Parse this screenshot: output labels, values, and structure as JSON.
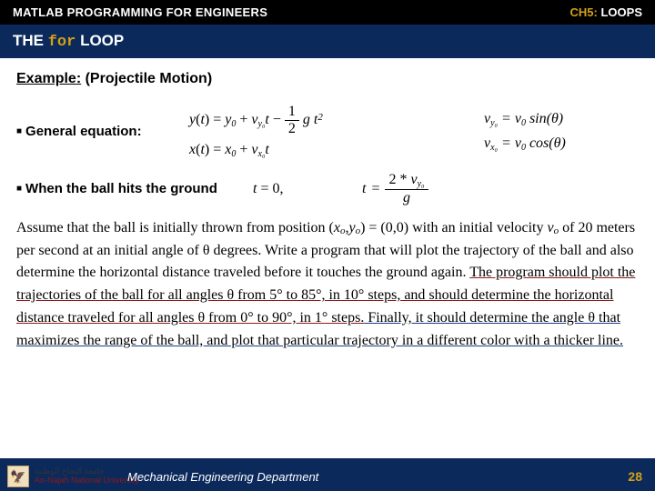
{
  "header": {
    "left": "MATLAB PROGRAMMING FOR ENGINEERS",
    "chapter_prefix": "CH5:",
    "chapter_title": "LOOPS"
  },
  "title": {
    "prefix": "THE ",
    "keyword": "for",
    "suffix": " LOOP"
  },
  "example": {
    "label": "Example:",
    "topic": "(Projectile Motion)"
  },
  "section1": {
    "label": "General equation:",
    "eq_y": "y(t) = y₀ + v_{y₀} t − ½ g t²",
    "eq_x": "x(t) = x₀ + v_{x₀} t",
    "eq_vy": "v_{y₀} = v₀ sin(θ)",
    "eq_vx": "v_{x₀} = v₀ cos(θ)"
  },
  "section2": {
    "label": "When the ball hits the ground",
    "eq_t0": "t = 0,",
    "eq_t_lhs": "t = ",
    "frac_num": "2 * v_{y₀}",
    "frac_den": "g"
  },
  "body": {
    "p1a": "Assume that the ball is initially thrown from position (",
    "p1b": ") = (0,0) with an initial velocity ",
    "p1c": " of 20 meters per second at an initial angle of θ degrees. Write a program that will plot the trajectory of the ball and also determine the horizontal distance traveled before it touches the ground again. ",
    "p2": "The program should plot the trajectories of the ball for all angles θ from 5° to 85°, in 10° steps, and should determine the horizontal distance traveled for all angles θ from 0° to 90°, in 1° steps.",
    "p3": " Finally, it should determine the angle θ that maximizes the range of the ball, and plot that particular trajectory in a different color with a thicker line.",
    "xo": "x",
    "yo": "y",
    "vo": "v",
    "osub": "o"
  },
  "footer": {
    "uni_ar": "جامعة النجاح الوطنية",
    "uni_en": "An-Najah National University",
    "dept": "Mechanical Engineering Department",
    "page": "28"
  },
  "colors": {
    "header_bg": "#000000",
    "title_bg": "#0b2a5b",
    "accent": "#d4a017",
    "underline1": "#8b1a1a",
    "underline2": "#1a3b8b",
    "underline3": "#0a6b2a"
  }
}
